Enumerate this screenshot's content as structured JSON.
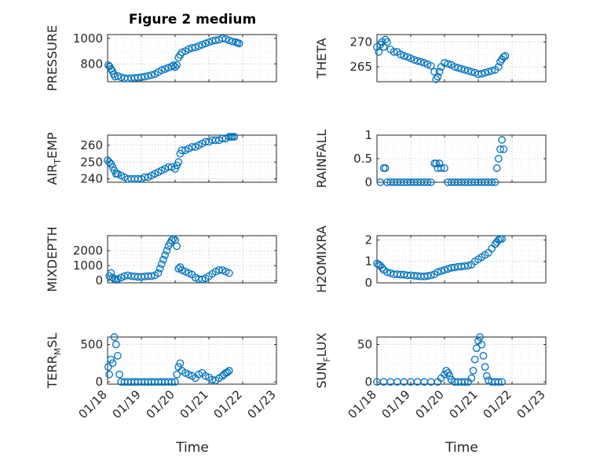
{
  "figure": {
    "title": "Figure 2 medium",
    "marker_color": "#0072bd",
    "x_axis_label": "Time",
    "x_tick_labels": [
      "01/18",
      "01/19",
      "01/20",
      "01/21",
      "01/22",
      "01/23"
    ]
  },
  "chart_data": [
    {
      "type": "scatter",
      "ylabel": "PRESSURE",
      "ylabel_sub": "",
      "ylabel_tail": "",
      "xlim": [
        0,
        5
      ],
      "ylim": [
        660,
        1030
      ],
      "yticks": [
        800,
        1000
      ],
      "grid": true,
      "x": [
        0.02,
        0.06,
        0.1,
        0.14,
        0.18,
        0.22,
        0.3,
        0.4,
        0.5,
        0.6,
        0.7,
        0.8,
        0.9,
        1.0,
        1.1,
        1.2,
        1.3,
        1.4,
        1.5,
        1.6,
        1.7,
        1.8,
        1.9,
        1.95,
        2.0,
        2.05,
        2.1,
        2.15,
        2.2,
        2.3,
        2.4,
        2.5,
        2.6,
        2.7,
        2.8,
        2.9,
        3.0,
        3.1,
        3.2,
        3.3,
        3.4,
        3.5,
        3.6,
        3.7,
        3.8,
        3.85,
        3.9
      ],
      "y": [
        790,
        780,
        760,
        745,
        720,
        700,
        705,
        695,
        688,
        685,
        688,
        690,
        692,
        695,
        700,
        705,
        712,
        720,
        735,
        750,
        760,
        770,
        780,
        790,
        775,
        790,
        850,
        870,
        890,
        900,
        915,
        925,
        930,
        940,
        950,
        960,
        970,
        980,
        985,
        990,
        1000,
        995,
        985,
        975,
        970,
        965,
        960
      ]
    },
    {
      "type": "scatter",
      "ylabel": "THETA",
      "ylabel_sub": "",
      "ylabel_tail": "",
      "xlim": [
        0,
        5
      ],
      "ylim": [
        262,
        271.5
      ],
      "yticks": [
        265,
        270
      ],
      "grid": true,
      "x": [
        0.0,
        0.05,
        0.1,
        0.15,
        0.2,
        0.25,
        0.3,
        0.4,
        0.5,
        0.6,
        0.7,
        0.8,
        0.9,
        1.0,
        1.1,
        1.2,
        1.3,
        1.4,
        1.5,
        1.6,
        1.7,
        1.75,
        1.8,
        1.85,
        1.9,
        2.0,
        2.1,
        2.2,
        2.3,
        2.4,
        2.5,
        2.6,
        2.7,
        2.8,
        2.9,
        3.0,
        3.1,
        3.2,
        3.3,
        3.4,
        3.5,
        3.6,
        3.65,
        3.7,
        3.75,
        3.8
      ],
      "y": [
        269,
        268,
        269.5,
        270,
        269,
        270.5,
        270,
        268.5,
        268,
        268,
        267.5,
        267.2,
        267,
        266.7,
        266.4,
        266.2,
        266,
        265.8,
        265.5,
        265.2,
        264,
        262.5,
        263,
        264,
        265,
        265.8,
        265.6,
        265.4,
        265,
        264.8,
        264.6,
        264.4,
        264.2,
        264,
        263.8,
        263.5,
        263.6,
        263.8,
        264,
        264.2,
        264.4,
        265,
        266,
        266.5,
        267,
        267.2
      ]
    },
    {
      "type": "scatter",
      "ylabel": "AIR",
      "ylabel_sub": "T",
      "ylabel_tail": "EMP",
      "xlim": [
        0,
        5
      ],
      "ylim": [
        238,
        266
      ],
      "yticks": [
        240,
        250,
        260
      ],
      "grid": true,
      "x": [
        0.0,
        0.05,
        0.1,
        0.15,
        0.2,
        0.25,
        0.3,
        0.4,
        0.5,
        0.6,
        0.7,
        0.8,
        0.9,
        1.0,
        1.1,
        1.2,
        1.3,
        1.4,
        1.5,
        1.6,
        1.7,
        1.8,
        1.9,
        2.0,
        2.05,
        2.1,
        2.15,
        2.2,
        2.3,
        2.4,
        2.5,
        2.6,
        2.7,
        2.8,
        2.9,
        3.0,
        3.1,
        3.2,
        3.3,
        3.4,
        3.5,
        3.6,
        3.65,
        3.7,
        3.75
      ],
      "y": [
        251,
        250,
        249,
        247,
        245,
        243,
        243,
        242,
        241,
        240,
        240,
        240,
        240,
        240,
        241,
        241,
        242,
        243,
        244,
        245,
        246,
        247,
        247,
        246,
        248,
        250,
        255,
        257,
        257,
        258,
        259,
        259,
        260,
        261,
        262,
        262,
        263,
        263,
        263,
        264,
        264,
        265,
        265,
        265,
        265
      ]
    },
    {
      "type": "scatter",
      "ylabel": "RAINFALL",
      "ylabel_sub": "",
      "ylabel_tail": "",
      "xlim": [
        0,
        5
      ],
      "ylim": [
        0,
        1
      ],
      "yticks": [
        0,
        0.5,
        1
      ],
      "grid": true,
      "x": [
        0.1,
        0.2,
        0.25,
        0.3,
        0.4,
        0.5,
        0.6,
        0.7,
        0.8,
        0.9,
        1.0,
        1.1,
        1.2,
        1.3,
        1.4,
        1.5,
        1.6,
        1.7,
        1.75,
        1.8,
        1.85,
        1.9,
        2.0,
        2.1,
        2.2,
        2.3,
        2.4,
        2.5,
        2.6,
        2.7,
        2.8,
        2.9,
        3.0,
        3.1,
        3.2,
        3.3,
        3.4,
        3.5,
        3.55,
        3.6,
        3.65,
        3.7,
        3.75
      ],
      "y": [
        0,
        0.3,
        0.3,
        0,
        0,
        0,
        0,
        0,
        0,
        0,
        0,
        0,
        0,
        0,
        0,
        0,
        0,
        0.4,
        0.4,
        0.3,
        0.4,
        0.3,
        0.3,
        0,
        0,
        0,
        0,
        0,
        0,
        0,
        0,
        0,
        0,
        0,
        0,
        0,
        0,
        0,
        0.3,
        0.5,
        0.7,
        0.9,
        0.7
      ]
    },
    {
      "type": "scatter",
      "ylabel": "MIXDEPTH",
      "ylabel_sub": "",
      "ylabel_tail": "",
      "xlim": [
        0,
        5
      ],
      "ylim": [
        -150,
        3000
      ],
      "yticks": [
        0,
        1000,
        2000
      ],
      "grid": true,
      "x": [
        0.05,
        0.1,
        0.15,
        0.2,
        0.25,
        0.3,
        0.4,
        0.5,
        0.6,
        0.7,
        0.8,
        0.9,
        1.0,
        1.1,
        1.2,
        1.3,
        1.4,
        1.5,
        1.55,
        1.6,
        1.65,
        1.7,
        1.75,
        1.8,
        1.85,
        1.9,
        1.95,
        2.0,
        2.05,
        2.1,
        2.15,
        2.2,
        2.3,
        2.4,
        2.5,
        2.6,
        2.7,
        2.8,
        2.9,
        3.0,
        3.1,
        3.2,
        3.3,
        3.4,
        3.5,
        3.6
      ],
      "y": [
        300,
        500,
        200,
        100,
        50,
        100,
        200,
        300,
        350,
        300,
        280,
        250,
        250,
        280,
        300,
        300,
        350,
        500,
        800,
        1100,
        1400,
        1700,
        2000,
        2300,
        2500,
        2700,
        2800,
        2700,
        2300,
        800,
        900,
        700,
        600,
        500,
        400,
        200,
        100,
        80,
        150,
        300,
        450,
        600,
        700,
        700,
        600,
        500
      ]
    },
    {
      "type": "scatter",
      "ylabel": "H2OMIXRA",
      "ylabel_sub": "",
      "ylabel_tail": "",
      "xlim": [
        0,
        5
      ],
      "ylim": [
        0,
        2.2
      ],
      "yticks": [
        0,
        1,
        2
      ],
      "grid": true,
      "x": [
        0.0,
        0.05,
        0.1,
        0.15,
        0.2,
        0.3,
        0.4,
        0.5,
        0.6,
        0.7,
        0.8,
        0.9,
        1.0,
        1.1,
        1.2,
        1.3,
        1.4,
        1.5,
        1.6,
        1.7,
        1.8,
        1.9,
        2.0,
        2.1,
        2.2,
        2.3,
        2.4,
        2.5,
        2.6,
        2.7,
        2.8,
        2.9,
        3.0,
        3.1,
        3.2,
        3.3,
        3.4,
        3.5,
        3.55,
        3.6,
        3.65,
        3.7
      ],
      "y": [
        0.9,
        0.85,
        0.8,
        0.7,
        0.6,
        0.5,
        0.45,
        0.4,
        0.4,
        0.38,
        0.38,
        0.35,
        0.35,
        0.33,
        0.32,
        0.3,
        0.3,
        0.32,
        0.35,
        0.4,
        0.5,
        0.55,
        0.6,
        0.65,
        0.7,
        0.72,
        0.75,
        0.76,
        0.78,
        0.8,
        0.85,
        1.0,
        1.1,
        1.2,
        1.3,
        1.4,
        1.6,
        1.8,
        1.9,
        2.0,
        2.05,
        2.05
      ]
    },
    {
      "type": "scatter",
      "ylabel": "TERR",
      "ylabel_sub": "M",
      "ylabel_tail": "SL",
      "xlim": [
        0,
        5
      ],
      "ylim": [
        -30,
        600
      ],
      "yticks": [
        0,
        500
      ],
      "grid": true,
      "x": [
        0.02,
        0.05,
        0.1,
        0.15,
        0.2,
        0.25,
        0.3,
        0.35,
        0.4,
        0.5,
        0.6,
        0.7,
        0.8,
        0.9,
        1.0,
        1.1,
        1.2,
        1.3,
        1.4,
        1.5,
        1.6,
        1.7,
        1.8,
        1.9,
        2.0,
        2.05,
        2.1,
        2.15,
        2.2,
        2.3,
        2.4,
        2.5,
        2.6,
        2.7,
        2.8,
        2.9,
        3.0,
        3.1,
        3.2,
        3.3,
        3.4,
        3.45,
        3.5,
        3.55,
        3.6
      ],
      "y": [
        200,
        100,
        300,
        250,
        600,
        500,
        350,
        100,
        0,
        0,
        0,
        0,
        0,
        0,
        0,
        0,
        0,
        0,
        0,
        0,
        0,
        0,
        0,
        0,
        0,
        100,
        200,
        250,
        150,
        120,
        100,
        80,
        50,
        100,
        120,
        80,
        60,
        30,
        20,
        50,
        80,
        100,
        120,
        130,
        150
      ]
    },
    {
      "type": "scatter",
      "ylabel": "SUN",
      "ylabel_sub": "F",
      "ylabel_tail": "LUX",
      "xlim": [
        0,
        5
      ],
      "ylim": [
        -3,
        60
      ],
      "yticks": [
        0,
        50
      ],
      "grid": true,
      "x": [
        0.0,
        0.2,
        0.4,
        0.6,
        0.8,
        1.0,
        1.2,
        1.4,
        1.6,
        1.8,
        1.9,
        2.0,
        2.05,
        2.1,
        2.15,
        2.2,
        2.3,
        2.4,
        2.5,
        2.6,
        2.7,
        2.8,
        2.85,
        2.9,
        2.95,
        3.0,
        3.05,
        3.1,
        3.15,
        3.2,
        3.25,
        3.3,
        3.4,
        3.5,
        3.6,
        3.7
      ],
      "y": [
        0,
        0,
        0,
        0,
        0,
        0,
        0,
        0,
        0,
        0,
        5,
        10,
        15,
        12,
        8,
        3,
        0,
        0,
        0,
        0,
        0,
        5,
        15,
        30,
        45,
        55,
        60,
        50,
        35,
        20,
        8,
        2,
        0,
        0,
        0,
        0
      ]
    }
  ]
}
